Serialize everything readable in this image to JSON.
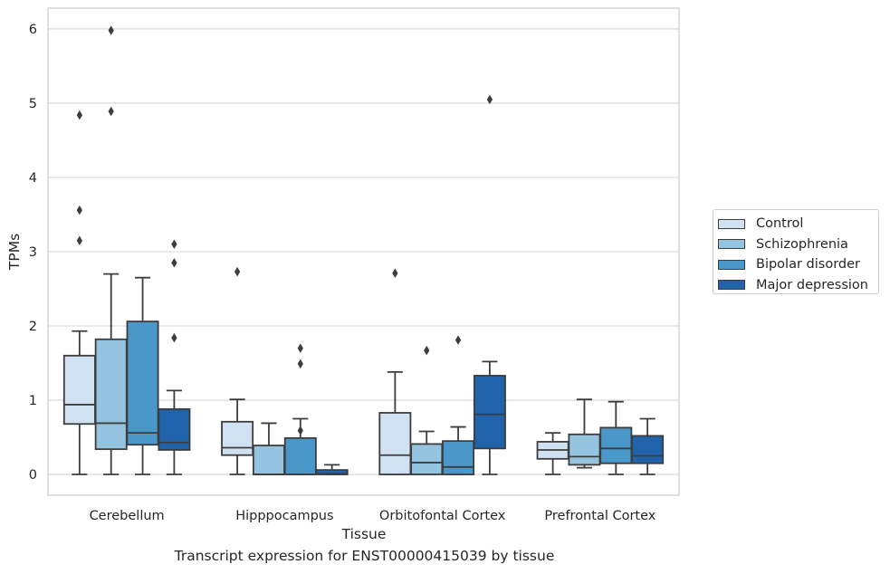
{
  "chart_data": {
    "type": "box",
    "title": "",
    "caption": "Transcript expression for ENST00000415039 by tissue",
    "xlabel": "Tissue",
    "ylabel": "TPMs",
    "ylim": [
      -0.28,
      6.28
    ],
    "yticks": [
      0,
      1,
      2,
      3,
      4,
      5,
      6
    ],
    "grid": "horizontal",
    "legend_position": "right",
    "categories": [
      "Cerebellum",
      "Hipppocampus",
      "Orbitofontal Cortex",
      "Prefrontal Cortex"
    ],
    "series": [
      {
        "name": "Control",
        "color": "#d0e1f2",
        "boxes": [
          {
            "min": 0,
            "q1": 0.68,
            "median": 0.94,
            "q3": 1.6,
            "max": 1.93,
            "outliers": [
              4.84,
              3.56,
              3.15
            ]
          },
          {
            "min": 0,
            "q1": 0.26,
            "median": 0.36,
            "q3": 0.71,
            "max": 1.01,
            "outliers": [
              2.73
            ]
          },
          {
            "min": 0,
            "q1": 0,
            "median": 0.26,
            "q3": 0.83,
            "max": 1.38,
            "outliers": [
              2.71
            ]
          },
          {
            "min": 0,
            "q1": 0.21,
            "median": 0.33,
            "q3": 0.44,
            "max": 0.56,
            "outliers": []
          }
        ]
      },
      {
        "name": "Schizophrenia",
        "color": "#94c4df",
        "boxes": [
          {
            "min": 0,
            "q1": 0.34,
            "median": 0.69,
            "q3": 1.82,
            "max": 2.7,
            "outliers": [
              5.98,
              4.89
            ]
          },
          {
            "min": 0,
            "q1": 0,
            "median": 0,
            "q3": 0.39,
            "max": 0.69,
            "outliers": []
          },
          {
            "min": 0,
            "q1": 0,
            "median": 0.16,
            "q3": 0.41,
            "max": 0.58,
            "outliers": [
              1.67
            ]
          },
          {
            "min": 0.09,
            "q1": 0.13,
            "median": 0.24,
            "q3": 0.54,
            "max": 1.01,
            "outliers": []
          }
        ]
      },
      {
        "name": "Bipolar disorder",
        "color": "#4a98c9",
        "boxes": [
          {
            "min": 0,
            "q1": 0.4,
            "median": 0.56,
            "q3": 2.06,
            "max": 2.65,
            "outliers": []
          },
          {
            "min": 0,
            "q1": 0,
            "median": 0,
            "q3": 0.49,
            "max": 0.75,
            "outliers": [
              1.7,
              1.49,
              0.59
            ]
          },
          {
            "min": 0,
            "q1": 0,
            "median": 0.1,
            "q3": 0.45,
            "max": 0.64,
            "outliers": [
              1.81
            ]
          },
          {
            "min": 0,
            "q1": 0.15,
            "median": 0.35,
            "q3": 0.63,
            "max": 0.98,
            "outliers": []
          }
        ]
      },
      {
        "name": "Major depression",
        "color": "#2163aa",
        "boxes": [
          {
            "min": 0,
            "q1": 0.33,
            "median": 0.43,
            "q3": 0.88,
            "max": 1.13,
            "outliers": [
              3.1,
              2.85,
              1.84
            ]
          },
          {
            "min": 0,
            "q1": 0,
            "median": 0.01,
            "q3": 0.06,
            "max": 0.13,
            "outliers": []
          },
          {
            "min": 0,
            "q1": 0.35,
            "median": 0.81,
            "q3": 1.33,
            "max": 1.52,
            "outliers": [
              5.05
            ]
          },
          {
            "min": 0,
            "q1": 0.15,
            "median": 0.25,
            "q3": 0.52,
            "max": 0.75,
            "outliers": []
          }
        ]
      }
    ]
  }
}
